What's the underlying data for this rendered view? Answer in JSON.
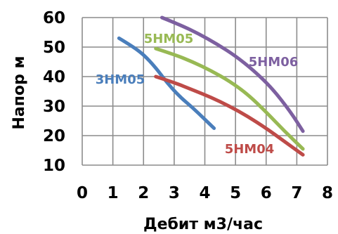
{
  "chart_data": {
    "type": "line",
    "title": "",
    "xlabel": "Дебит м3/час",
    "ylabel": "Напор м",
    "xlim": [
      0,
      8
    ],
    "ylim": [
      10,
      60
    ],
    "xticks": [
      "0",
      "1",
      "2",
      "3",
      "4",
      "5",
      "6",
      "7",
      "8"
    ],
    "yticks": [
      "10",
      "20",
      "30",
      "40",
      "50",
      "60"
    ],
    "grid": true,
    "legend": "none",
    "series": [
      {
        "name": "3HM05",
        "color": "#4a7ebb",
        "x": [
          1.2,
          1.6,
          2.0,
          2.4,
          2.8,
          3.2,
          3.6,
          4.0,
          4.3
        ],
        "y": [
          53,
          50.5,
          47.5,
          43,
          37.5,
          33,
          29.5,
          25.5,
          22.5
        ]
      },
      {
        "name": "5HM05",
        "color": "#98b954",
        "x": [
          2.4,
          3.0,
          3.6,
          4.2,
          4.8,
          5.4,
          6.0,
          6.6,
          7.2
        ],
        "y": [
          49.5,
          47.5,
          45,
          42,
          38.5,
          34,
          28,
          21.5,
          15.5
        ]
      },
      {
        "name": "5HM06",
        "color": "#7d60a0",
        "x": [
          2.6,
          3.2,
          3.8,
          4.4,
          5.0,
          5.6,
          6.2,
          6.8,
          7.2
        ],
        "y": [
          60,
          57.5,
          54.5,
          51,
          47,
          42,
          36,
          28,
          21.5
        ]
      },
      {
        "name": "5HM04",
        "color": "#be4b48",
        "x": [
          2.4,
          3.0,
          3.6,
          4.2,
          4.8,
          5.4,
          6.0,
          6.6,
          7.2
        ],
        "y": [
          40,
          38,
          35.5,
          33,
          30,
          26.5,
          22.5,
          18,
          13.5
        ]
      }
    ]
  }
}
